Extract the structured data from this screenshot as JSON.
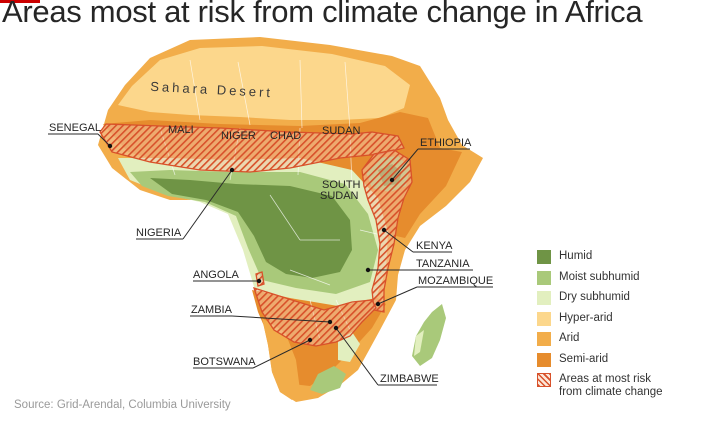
{
  "title": "Areas most at risk from climate change in Africa",
  "source": "Source: Grid-Arendal, Columbia University",
  "desert_label": "Sahara Desert",
  "country_labels": {
    "mali": "MALI",
    "niger": "NIGER",
    "chad": "CHAD",
    "sudan": "SUDAN",
    "senegal": "SENEGAL",
    "ethiopia": "ETHIOPIA",
    "south_sudan_line1": "SOUTH",
    "south_sudan_line2": "SUDAN",
    "nigeria": "NIGERIA",
    "kenya": "KENYA",
    "tanzania": "TANZANIA",
    "mozambique": "MOZAMBIQUE",
    "angola": "ANGOLA",
    "zambia": "ZAMBIA",
    "botswana": "BOTSWANA",
    "zimbabwe": "ZIMBABWE"
  },
  "legend": [
    {
      "label": "Humid",
      "color": "#6f9445"
    },
    {
      "label": "Moist subhumid",
      "color": "#a9c97a"
    },
    {
      "label": "Dry subhumid",
      "color": "#e2efbf"
    },
    {
      "label": "Hyper-arid",
      "color": "#fcd78c"
    },
    {
      "label": "Arid",
      "color": "#f2ad4a"
    },
    {
      "label": "Semi-arid",
      "color": "#e68c2d"
    },
    {
      "label": "Areas at most risk from climate change",
      "color": "#d8512a",
      "pattern": "hatch"
    }
  ]
}
